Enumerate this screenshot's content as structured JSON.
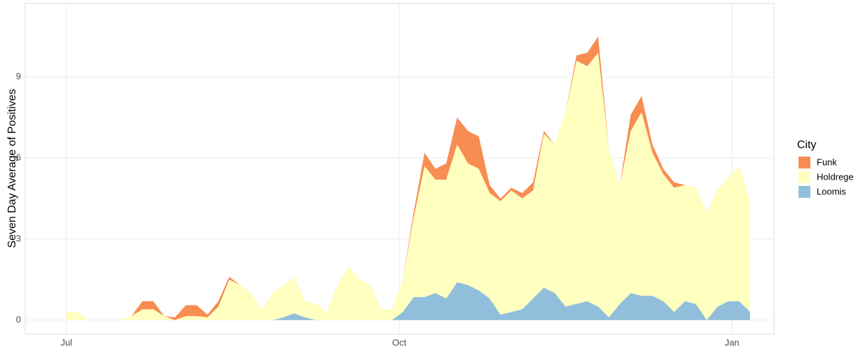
{
  "chart_data": {
    "type": "stacked_area",
    "y_label": "Seven Day Average of Positives",
    "legend_title": "City",
    "x": [
      0,
      3,
      6,
      9,
      12,
      15,
      18,
      21,
      24,
      27,
      30,
      33,
      36,
      39,
      42,
      45,
      48,
      51,
      54,
      57,
      60,
      63,
      66,
      69,
      72,
      75,
      78,
      81,
      84,
      87,
      90,
      93,
      96,
      99,
      102,
      105,
      108,
      111,
      114,
      117,
      120,
      123,
      126,
      129,
      132,
      135,
      138,
      141,
      144,
      147,
      150,
      153,
      156,
      159,
      162,
      165,
      168,
      171,
      174,
      177,
      180,
      183,
      186,
      189
    ],
    "series": [
      {
        "name": "Funk",
        "color": "#f88d52",
        "values": [
          0,
          0,
          0,
          0,
          0,
          0,
          0,
          0.3,
          0.3,
          0,
          0.1,
          0.4,
          0.4,
          0.1,
          0.2,
          0.1,
          0,
          0,
          0,
          0,
          0,
          0,
          0,
          0,
          0,
          0,
          0,
          0,
          0,
          0,
          0,
          0,
          0.2,
          0.5,
          0.4,
          0.6,
          1.0,
          1.2,
          1.2,
          0.3,
          0.1,
          0.1,
          0.2,
          0.3,
          0.1,
          0,
          0,
          0.2,
          0.5,
          0.6,
          0,
          0,
          0.6,
          0.6,
          0.3,
          0.2,
          0.2,
          0,
          0,
          0,
          0,
          0,
          0,
          0
        ]
      },
      {
        "name": "Holdrege",
        "color": "#ffffbf",
        "values": [
          0.3,
          0.3,
          0,
          0,
          0,
          0,
          0.15,
          0.4,
          0.4,
          0.15,
          0,
          0.15,
          0.15,
          0.1,
          0.5,
          1.5,
          1.3,
          1.0,
          0.4,
          1.0,
          1.2,
          1.35,
          0.6,
          0.6,
          0.3,
          1.3,
          2.0,
          1.5,
          1.3,
          0.4,
          0.4,
          1.2,
          2.95,
          4.85,
          4.2,
          4.4,
          5.1,
          4.5,
          4.5,
          3.9,
          4.2,
          4.5,
          4.1,
          4.0,
          5.7,
          5.5,
          7.2,
          9.0,
          8.7,
          9.4,
          6.2,
          4.4,
          6.0,
          6.8,
          5.3,
          4.7,
          4.6,
          4.3,
          4.3,
          4.0,
          4.3,
          4.6,
          5.0,
          4.1
        ]
      },
      {
        "name": "Loomis",
        "color": "#91bfdb",
        "values": [
          0,
          0,
          0,
          0,
          0,
          0,
          0,
          0,
          0,
          0,
          0,
          0,
          0,
          0,
          0,
          0,
          0,
          0,
          0,
          0,
          0.1,
          0.25,
          0.1,
          0,
          0,
          0,
          0,
          0,
          0,
          0,
          0,
          0.3,
          0.85,
          0.85,
          1.0,
          0.8,
          1.4,
          1.3,
          1.1,
          0.8,
          0.2,
          0.3,
          0.4,
          0.8,
          1.2,
          1.0,
          0.5,
          0.6,
          0.7,
          0.5,
          0.1,
          0.6,
          1.0,
          0.9,
          0.9,
          0.7,
          0.3,
          0.7,
          0.6,
          0,
          0.5,
          0.7,
          0.7,
          0.3
        ]
      }
    ],
    "xlim": [
      -11.4,
      195.6
    ],
    "xticks": [
      {
        "value": 0,
        "label": "Jul"
      },
      {
        "value": 92,
        "label": "Oct"
      },
      {
        "value": 184,
        "label": "Jan"
      }
    ],
    "ylim": [
      -0.52,
      11.72
    ],
    "yticks": [
      0,
      3,
      6,
      9
    ],
    "grid": true
  }
}
